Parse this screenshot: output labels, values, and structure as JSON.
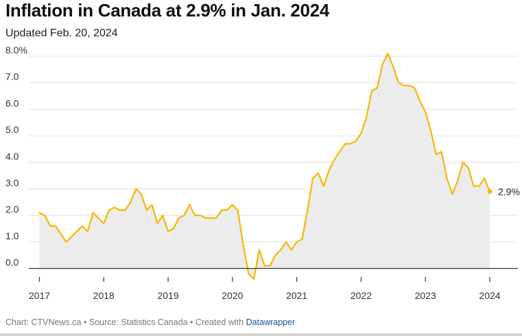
{
  "title": "Inflation in Canada at 2.9% in Jan. 2024",
  "subtitle": "Updated Feb. 20, 2024",
  "footer": {
    "prefix": "Chart: CTVNews.ca • Source: Statistics Canada • Created with ",
    "link": "Datawrapper"
  },
  "colors": {
    "line": "#f5b800",
    "area": "#ececec",
    "grid": "#dedede",
    "axis": "#333333"
  },
  "chart_data": {
    "type": "area",
    "title": "Inflation in Canada at 2.9% in Jan. 2024",
    "subtitle": "Updated Feb. 20, 2024",
    "xlabel": "",
    "ylabel": "",
    "ylim": [
      -0.5,
      8.0
    ],
    "y_ticks": [
      {
        "value": 8.0,
        "label": "8.0%"
      },
      {
        "value": 7.0,
        "label": "7.0"
      },
      {
        "value": 6.0,
        "label": "6.0"
      },
      {
        "value": 5.0,
        "label": "5.0"
      },
      {
        "value": 4.0,
        "label": "4.0"
      },
      {
        "value": 3.0,
        "label": "3.0"
      },
      {
        "value": 2.0,
        "label": "2.0"
      },
      {
        "value": 1.0,
        "label": "1.0"
      },
      {
        "value": 0.0,
        "label": "0.0"
      }
    ],
    "x_ticks": [
      "2017",
      "2018",
      "2019",
      "2020",
      "2021",
      "2022",
      "2023",
      "2024"
    ],
    "grid": true,
    "end_label": "2.9%",
    "series": [
      {
        "x": [
          "2017-01",
          "2017-02",
          "2017-03",
          "2017-04",
          "2017-05",
          "2017-06",
          "2017-07",
          "2017-08",
          "2017-09",
          "2017-10",
          "2017-11",
          "2017-12",
          "2018-01",
          "2018-02",
          "2018-03",
          "2018-04",
          "2018-05",
          "2018-06",
          "2018-07",
          "2018-08",
          "2018-09",
          "2018-10",
          "2018-11",
          "2018-12",
          "2019-01",
          "2019-02",
          "2019-03",
          "2019-04",
          "2019-05",
          "2019-06",
          "2019-07",
          "2019-08",
          "2019-09",
          "2019-10",
          "2019-11",
          "2019-12",
          "2020-01",
          "2020-02",
          "2020-03",
          "2020-04",
          "2020-05",
          "2020-06",
          "2020-07",
          "2020-08",
          "2020-09",
          "2020-10",
          "2020-11",
          "2020-12",
          "2021-01",
          "2021-02",
          "2021-03",
          "2021-04",
          "2021-05",
          "2021-06",
          "2021-07",
          "2021-08",
          "2021-09",
          "2021-10",
          "2021-11",
          "2021-12",
          "2022-01",
          "2022-02",
          "2022-03",
          "2022-04",
          "2022-05",
          "2022-06",
          "2022-07",
          "2022-08",
          "2022-09",
          "2022-10",
          "2022-11",
          "2022-12",
          "2023-01",
          "2023-02",
          "2023-03",
          "2023-04",
          "2023-05",
          "2023-06",
          "2023-07",
          "2023-08",
          "2023-09",
          "2023-10",
          "2023-11",
          "2023-12",
          "2024-01"
        ],
        "values": [
          2.1,
          2.0,
          1.6,
          1.6,
          1.3,
          1.0,
          1.2,
          1.4,
          1.6,
          1.4,
          2.1,
          1.9,
          1.7,
          2.2,
          2.3,
          2.2,
          2.2,
          2.5,
          3.0,
          2.8,
          2.2,
          2.4,
          1.7,
          2.0,
          1.4,
          1.5,
          1.9,
          2.0,
          2.4,
          2.0,
          2.0,
          1.9,
          1.9,
          1.9,
          2.2,
          2.2,
          2.4,
          2.2,
          0.9,
          -0.2,
          -0.4,
          0.7,
          0.1,
          0.1,
          0.5,
          0.7,
          1.0,
          0.7,
          1.0,
          1.1,
          2.2,
          3.4,
          3.6,
          3.1,
          3.7,
          4.1,
          4.4,
          4.7,
          4.7,
          4.8,
          5.1,
          5.7,
          6.7,
          6.8,
          7.7,
          8.1,
          7.6,
          7.0,
          6.9,
          6.9,
          6.8,
          6.3,
          5.9,
          5.2,
          4.3,
          4.4,
          3.4,
          2.8,
          3.3,
          4.0,
          3.8,
          3.1,
          3.1,
          3.4,
          2.9
        ]
      }
    ]
  }
}
